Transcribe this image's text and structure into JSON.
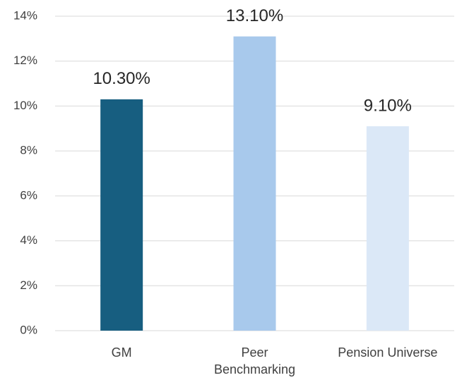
{
  "chart_data": {
    "type": "bar",
    "categories": [
      "GM",
      "Peer Benchmarking",
      "Pension Universe"
    ],
    "values": [
      10.3,
      13.1,
      9.1
    ],
    "value_labels": [
      "10.30%",
      "13.10%",
      "9.10%"
    ],
    "colors": [
      "#175e80",
      "#a8c9ec",
      "#dbe8f7"
    ],
    "ylim": [
      0,
      14
    ],
    "yticks": [
      {
        "value": 0,
        "label": "0%"
      },
      {
        "value": 2,
        "label": "2%"
      },
      {
        "value": 4,
        "label": "4%"
      },
      {
        "value": 6,
        "label": "6%"
      },
      {
        "value": 8,
        "label": "8%"
      },
      {
        "value": 10,
        "label": "10%"
      },
      {
        "value": 12,
        "label": "12%"
      },
      {
        "value": 14,
        "label": "14%"
      }
    ],
    "grid": true
  }
}
